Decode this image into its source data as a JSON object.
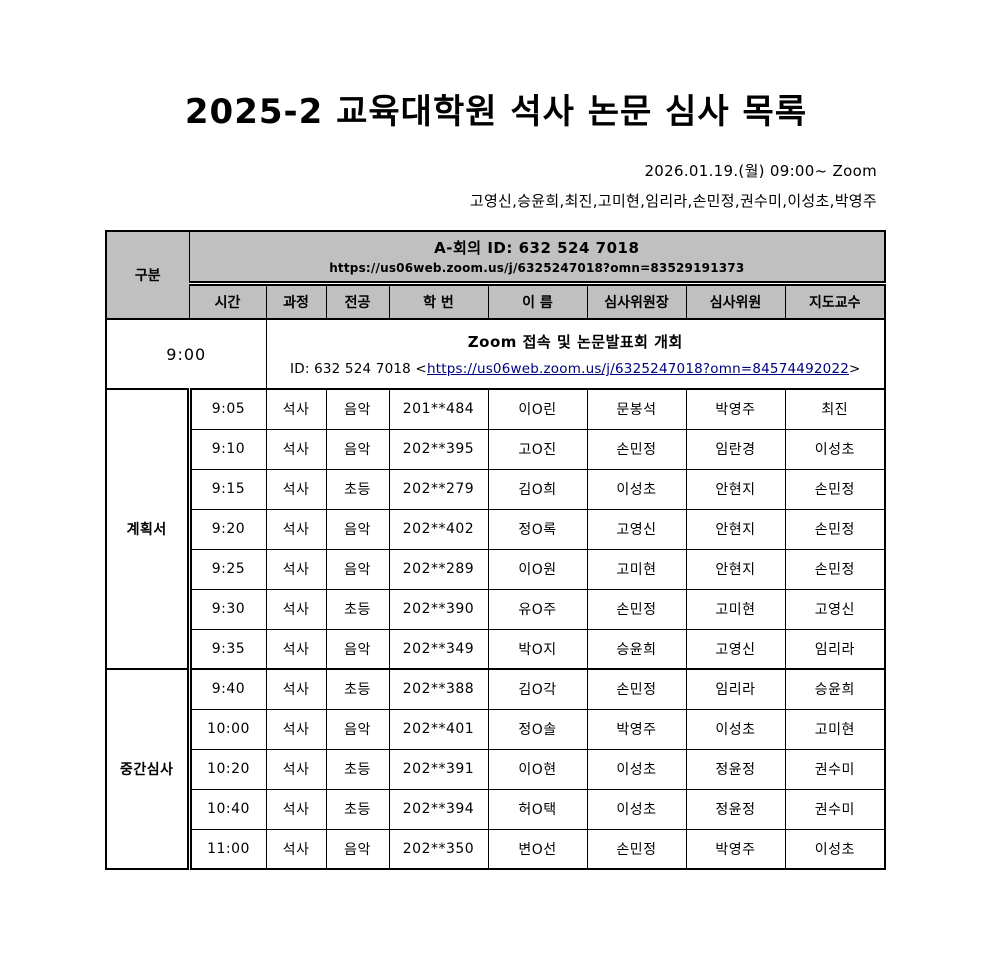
{
  "page": {
    "title": "2025-2 교육대학원 석사 논문 심사 목록",
    "date_line": "2026.01.19.(월) 09:00~  Zoom",
    "committee_line": "고영신,승윤희,최진,고미현,임리라,손민정,권수미,이성초,박영주"
  },
  "colors": {
    "header_bg": "#c0c0c0",
    "link": "#000080",
    "border": "#000000"
  },
  "table": {
    "group_header": "구분",
    "meeting": {
      "title": "A-회의 ID: 632 524 7018",
      "url": "https://us06web.zoom.us/j/6325247018?omn=83529191373"
    },
    "columns": [
      "시간",
      "과정",
      "전공",
      "학 번",
      "이 름",
      "심사위원장",
      "심사위원",
      "지도교수"
    ],
    "opening": {
      "time": "9:00",
      "title": "Zoom 접속 및 논문발표회 개회",
      "id_prefix": "ID: 632 524 7018 <",
      "link_text": "https://us06web.zoom.us/j/6325247018?omn=84574492022",
      "id_suffix": ">"
    },
    "groups": [
      {
        "label": "계획서",
        "rows": [
          [
            "9:05",
            "석사",
            "음악",
            "201**484",
            "이O린",
            "문봉석",
            "박영주",
            "최진"
          ],
          [
            "9:10",
            "석사",
            "음악",
            "202**395",
            "고O진",
            "손민정",
            "임란경",
            "이성초"
          ],
          [
            "9:15",
            "석사",
            "초등",
            "202**279",
            "김O희",
            "이성초",
            "안현지",
            "손민정"
          ],
          [
            "9:20",
            "석사",
            "음악",
            "202**402",
            "정O록",
            "고영신",
            "안현지",
            "손민정"
          ],
          [
            "9:25",
            "석사",
            "음악",
            "202**289",
            "이O원",
            "고미현",
            "안현지",
            "손민정"
          ],
          [
            "9:30",
            "석사",
            "초등",
            "202**390",
            "유O주",
            "손민정",
            "고미현",
            "고영신"
          ],
          [
            "9:35",
            "석사",
            "음악",
            "202**349",
            "박O지",
            "승윤희",
            "고영신",
            "임리라"
          ]
        ]
      },
      {
        "label": "중간심사",
        "rows": [
          [
            "9:40",
            "석사",
            "초등",
            "202**388",
            "김O각",
            "손민정",
            "임리라",
            "승윤희"
          ],
          [
            "10:00",
            "석사",
            "음악",
            "202**401",
            "정O솔",
            "박영주",
            "이성초",
            "고미현"
          ],
          [
            "10:20",
            "석사",
            "초등",
            "202**391",
            "이O현",
            "이성초",
            "정윤정",
            "권수미"
          ],
          [
            "10:40",
            "석사",
            "초등",
            "202**394",
            "허O택",
            "이성초",
            "정윤정",
            "권수미"
          ],
          [
            "11:00",
            "석사",
            "음악",
            "202**350",
            "변O선",
            "손민정",
            "박영주",
            "이성초"
          ]
        ]
      }
    ]
  }
}
